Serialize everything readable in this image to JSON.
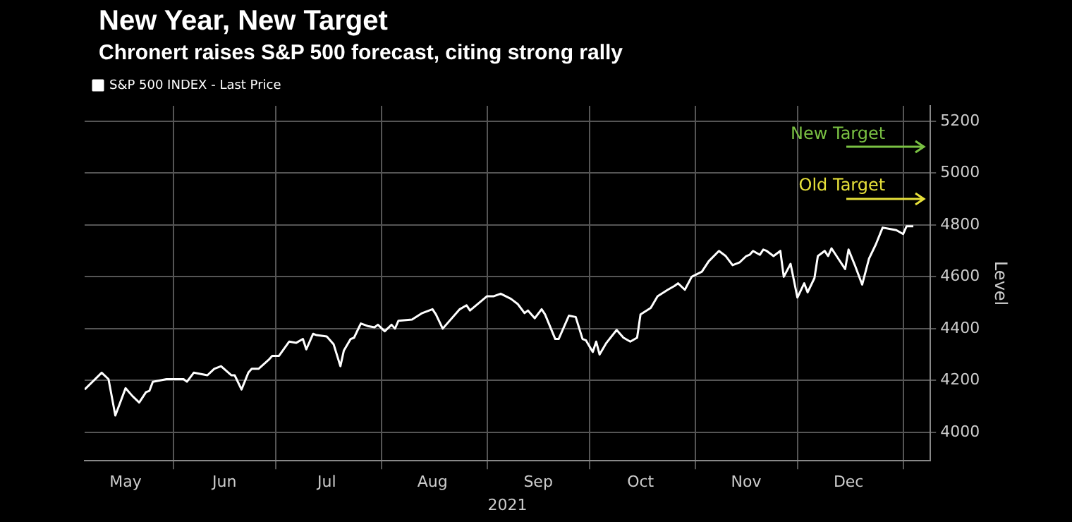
{
  "chart_data": {
    "type": "line",
    "title": "New Year, New Target",
    "subtitle": "Chronert raises S&P 500 forecast, citing strong rally",
    "xlabel": "2021",
    "ylabel": "Level",
    "legend": "top left",
    "grid": true,
    "marker": "none",
    "line_style": "solid",
    "xlim": [
      "2021-05-06",
      "2022-01-09"
    ],
    "xticks": [
      {
        "value": "2021-05-18",
        "label": "May"
      },
      {
        "value": "2021-06-01",
        "label": null
      },
      {
        "value": "2021-06-16",
        "label": "Jun"
      },
      {
        "value": "2021-07-01",
        "label": null
      },
      {
        "value": "2021-07-16",
        "label": "Jul"
      },
      {
        "value": "2021-08-01",
        "label": null
      },
      {
        "value": "2021-08-16",
        "label": "Aug"
      },
      {
        "value": "2021-09-01",
        "label": null
      },
      {
        "value": "2021-09-16",
        "label": "Sep"
      },
      {
        "value": "2021-10-01",
        "label": null
      },
      {
        "value": "2021-10-16",
        "label": "Oct"
      },
      {
        "value": "2021-11-01",
        "label": null
      },
      {
        "value": "2021-11-16",
        "label": "Nov"
      },
      {
        "value": "2021-12-01",
        "label": null
      },
      {
        "value": "2021-12-16",
        "label": "Dec"
      },
      {
        "value": "2022-01-01",
        "label": null
      }
    ],
    "ylim": [
      3890,
      5260
    ],
    "yticks": [
      4000,
      4200,
      4400,
      4600,
      4800,
      5000,
      5200
    ],
    "ref_lines": [
      {
        "axis": "y",
        "value": 5100,
        "label": "New Target",
        "color": "#7ac143"
      },
      {
        "axis": "y",
        "value": 4900,
        "label": "Old Target",
        "color": "#e6e03a"
      }
    ],
    "series": [
      {
        "name": "S&P 500 INDEX - Last Price",
        "color": "#ffffff",
        "x": [
          "2021-05-06",
          "2021-05-11",
          "2021-05-13",
          "2021-05-15",
          "2021-05-18",
          "2021-05-20",
          "2021-05-22",
          "2021-05-24",
          "2021-05-25",
          "2021-05-26",
          "2021-05-30",
          "2021-06-01",
          "2021-06-04",
          "2021-06-05",
          "2021-06-07",
          "2021-06-11",
          "2021-06-13",
          "2021-06-15",
          "2021-06-18",
          "2021-06-19",
          "2021-06-21",
          "2021-06-23",
          "2021-06-24",
          "2021-06-26",
          "2021-06-29",
          "2021-06-30",
          "2021-07-02",
          "2021-07-05",
          "2021-07-07",
          "2021-07-09",
          "2021-07-10",
          "2021-07-12",
          "2021-07-13",
          "2021-07-16",
          "2021-07-18",
          "2021-07-20",
          "2021-07-21",
          "2021-07-23",
          "2021-07-24",
          "2021-07-26",
          "2021-07-28",
          "2021-07-30",
          "2021-07-31",
          "2021-08-02",
          "2021-08-04",
          "2021-08-05",
          "2021-08-06",
          "2021-08-10",
          "2021-08-13",
          "2021-08-16",
          "2021-08-17",
          "2021-08-19",
          "2021-08-24",
          "2021-08-26",
          "2021-08-27",
          "2021-09-01",
          "2021-09-03",
          "2021-09-05",
          "2021-09-08",
          "2021-09-10",
          "2021-09-12",
          "2021-09-13",
          "2021-09-15",
          "2021-09-17",
          "2021-09-18",
          "2021-09-21",
          "2021-09-22",
          "2021-09-25",
          "2021-09-27",
          "2021-09-29",
          "2021-09-30",
          "2021-10-02",
          "2021-10-03",
          "2021-10-04",
          "2021-10-06",
          "2021-10-09",
          "2021-10-11",
          "2021-10-13",
          "2021-10-15",
          "2021-10-16",
          "2021-10-19",
          "2021-10-21",
          "2021-10-24",
          "2021-10-26",
          "2021-10-27",
          "2021-10-29",
          "2021-10-31",
          "2021-11-03",
          "2021-11-05",
          "2021-11-08",
          "2021-11-10",
          "2021-11-12",
          "2021-11-14",
          "2021-11-16",
          "2021-11-17",
          "2021-11-18",
          "2021-11-20",
          "2021-11-21",
          "2021-11-22",
          "2021-11-24",
          "2021-11-26",
          "2021-11-27",
          "2021-11-29",
          "2021-12-01",
          "2021-12-03",
          "2021-12-04",
          "2021-12-06",
          "2021-12-07",
          "2021-12-09",
          "2021-12-10",
          "2021-12-11",
          "2021-12-13",
          "2021-12-15",
          "2021-12-16",
          "2021-12-18",
          "2021-12-20",
          "2021-12-22",
          "2021-12-24",
          "2021-12-26",
          "2021-12-28",
          "2021-12-30",
          "2022-01-01",
          "2022-01-02",
          "2022-01-04"
        ],
        "values": [
          4165,
          4230,
          4205,
          4065,
          4170,
          4140,
          4115,
          4155,
          4160,
          4195,
          4205,
          4205,
          4205,
          4195,
          4230,
          4220,
          4245,
          4255,
          4220,
          4220,
          4165,
          4230,
          4245,
          4245,
          4280,
          4295,
          4295,
          4350,
          4345,
          4360,
          4320,
          4380,
          4375,
          4370,
          4340,
          4255,
          4315,
          4360,
          4365,
          4420,
          4410,
          4405,
          4415,
          4390,
          4415,
          4400,
          4430,
          4435,
          4460,
          4475,
          4455,
          4400,
          4475,
          4490,
          4470,
          4525,
          4525,
          4535,
          4515,
          4495,
          4460,
          4470,
          4440,
          4475,
          4455,
          4360,
          4360,
          4450,
          4445,
          4360,
          4355,
          4310,
          4350,
          4300,
          4345,
          4395,
          4365,
          4350,
          4365,
          4455,
          4480,
          4525,
          4550,
          4565,
          4575,
          4550,
          4600,
          4620,
          4660,
          4700,
          4680,
          4645,
          4655,
          4680,
          4685,
          4700,
          4685,
          4705,
          4700,
          4680,
          4700,
          4600,
          4650,
          4520,
          4575,
          4540,
          4595,
          4680,
          4700,
          4680,
          4710,
          4670,
          4630,
          4705,
          4640,
          4570,
          4670,
          4725,
          4790,
          4785,
          4780,
          4765,
          4795,
          4795
        ]
      }
    ]
  }
}
